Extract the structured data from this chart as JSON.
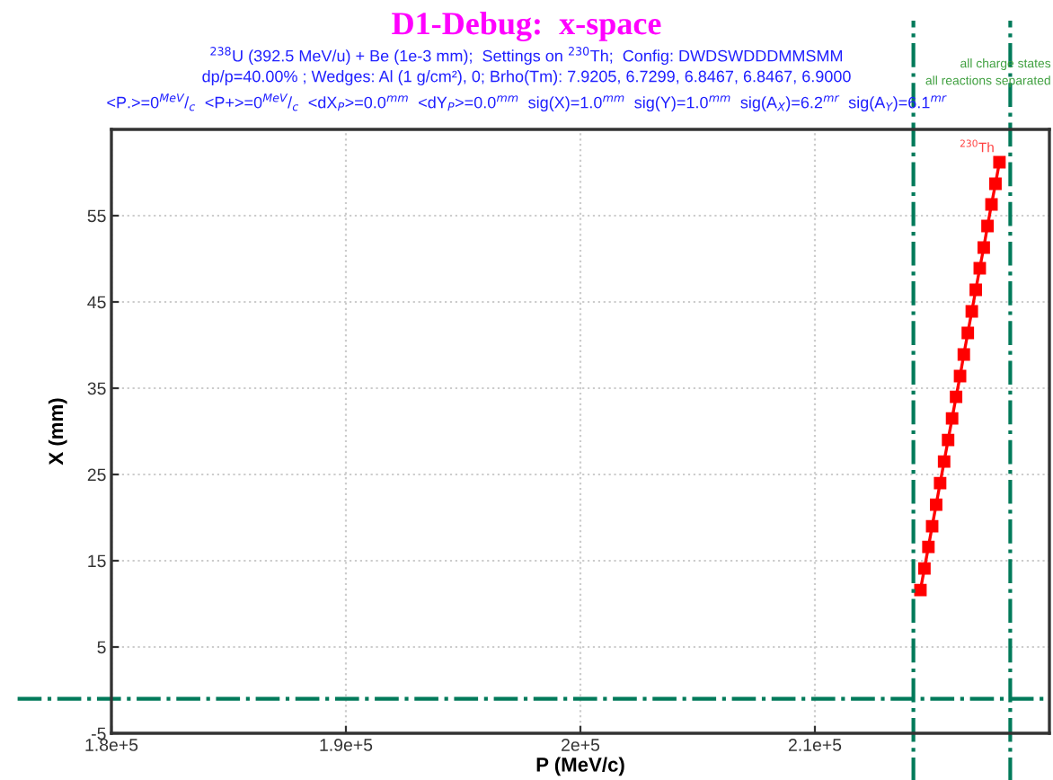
{
  "chart_data": {
    "type": "line",
    "title": "D1-Debug:  x-space",
    "subtitle": "$^{238}$U (392.5 MeV/u) + Be (1e-3 mm);  Settings on $^{230}$Th;  Config: DWDSWDDDMMSMM\ndp/p=40.00% ; Wedges: Al (1 g/cm²), 0; Brho(Tm): 7.9205, 6.7299, 6.8467, 6.8467, 6.9000\n<P.>=0$^{MeV}$/$_{c}$  <P+>=0$^{MeV}$/$_{c}$  <dX$_{P}$>=0.0$^{mm}$  <dY$_{P}$>=0.0$^{mm}$  sig(X)=1.0$^{mm}$  sig(Y)=1.0$^{mm}$  sig(A$_{X}$)=6.2$^{mr}$  sig(A$_{Y}$)=6.1$^{mr}$",
    "xlabel": "P (MeV/c)",
    "ylabel": "X (mm)",
    "series": [
      {
        "color": "#ff0000",
        "x": [
          214500,
          214670,
          214840,
          215000,
          215170,
          215340,
          215510,
          215680,
          215850,
          216020,
          216190,
          216350,
          216520,
          216690,
          216860,
          217030,
          217200,
          217360,
          217530,
          217700,
          217870
        ],
        "values": [
          11.6,
          14.1,
          16.6,
          19.0,
          21.5,
          24.0,
          26.5,
          29.0,
          31.5,
          34.0,
          36.4,
          38.9,
          41.4,
          43.9,
          46.4,
          48.9,
          51.3,
          53.8,
          56.3,
          58.7,
          61.2
        ]
      }
    ],
    "marker": "square",
    "line_style": "solid",
    "xlim": [
      180000,
      220000
    ],
    "xticks": [
      {
        "value": 180000,
        "label": "1.8e+5"
      },
      {
        "value": 190000,
        "label": "1.9e+5"
      },
      {
        "value": 200000,
        "label": "2e+5"
      },
      {
        "value": 210000,
        "label": "2.1e+5"
      }
    ],
    "ylim": [
      -5,
      65
    ],
    "yticks": [
      -5,
      5,
      15,
      25,
      35,
      45,
      55
    ],
    "grid": true,
    "ref_lines": [
      {
        "axis": "x",
        "value": 214200,
        "color": "#007a5a",
        "line_style": "dashdot"
      },
      {
        "axis": "x",
        "value": 218330,
        "color": "#007a5a",
        "line_style": "dashdot"
      },
      {
        "axis": "y",
        "value": -1,
        "color": "#007a5a",
        "line_style": "dashdot"
      }
    ],
    "annotations": [
      {
        "text": "$^{230}$Th",
        "x": 217870,
        "y": 61.2
      },
      "all charge states",
      "all reactions separated"
    ]
  }
}
